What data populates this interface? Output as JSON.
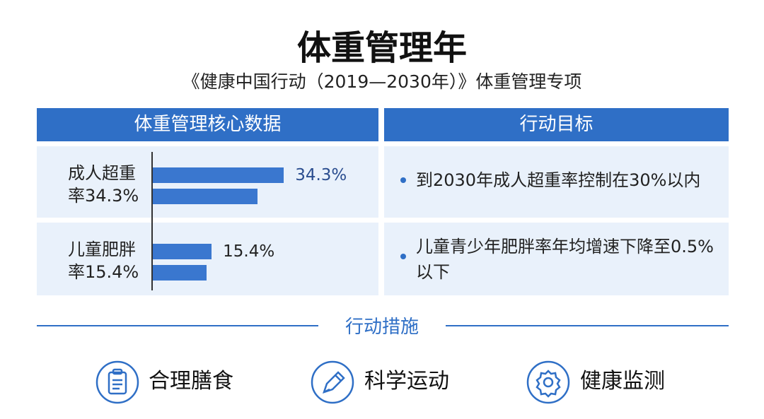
{
  "title": "体重管理年",
  "subtitle": "《健康中国行动（2019—2030年）》体重管理专项",
  "table": {
    "headers": [
      "体重管理核心数据",
      "行动目标"
    ],
    "rows": [
      {
        "label": "成人超重率34.3%",
        "bars": [
          {
            "value": 34.3,
            "value_label": "34.3%"
          },
          {
            "value": 27.4
          }
        ],
        "goal": "到2030年成人超重率控制在30%以内"
      },
      {
        "label": "儿童肥胖率15.4%",
        "bars": [
          {
            "value": 15.4,
            "value_label": "15.4%"
          },
          {
            "value": 14.1
          }
        ],
        "goal": "儿童青少年肥胖率年均增速下降至0.5%以下"
      }
    ]
  },
  "measures": {
    "title": "行动措施",
    "items": [
      "合理膳食",
      "科学运动",
      "健康监测"
    ]
  }
}
